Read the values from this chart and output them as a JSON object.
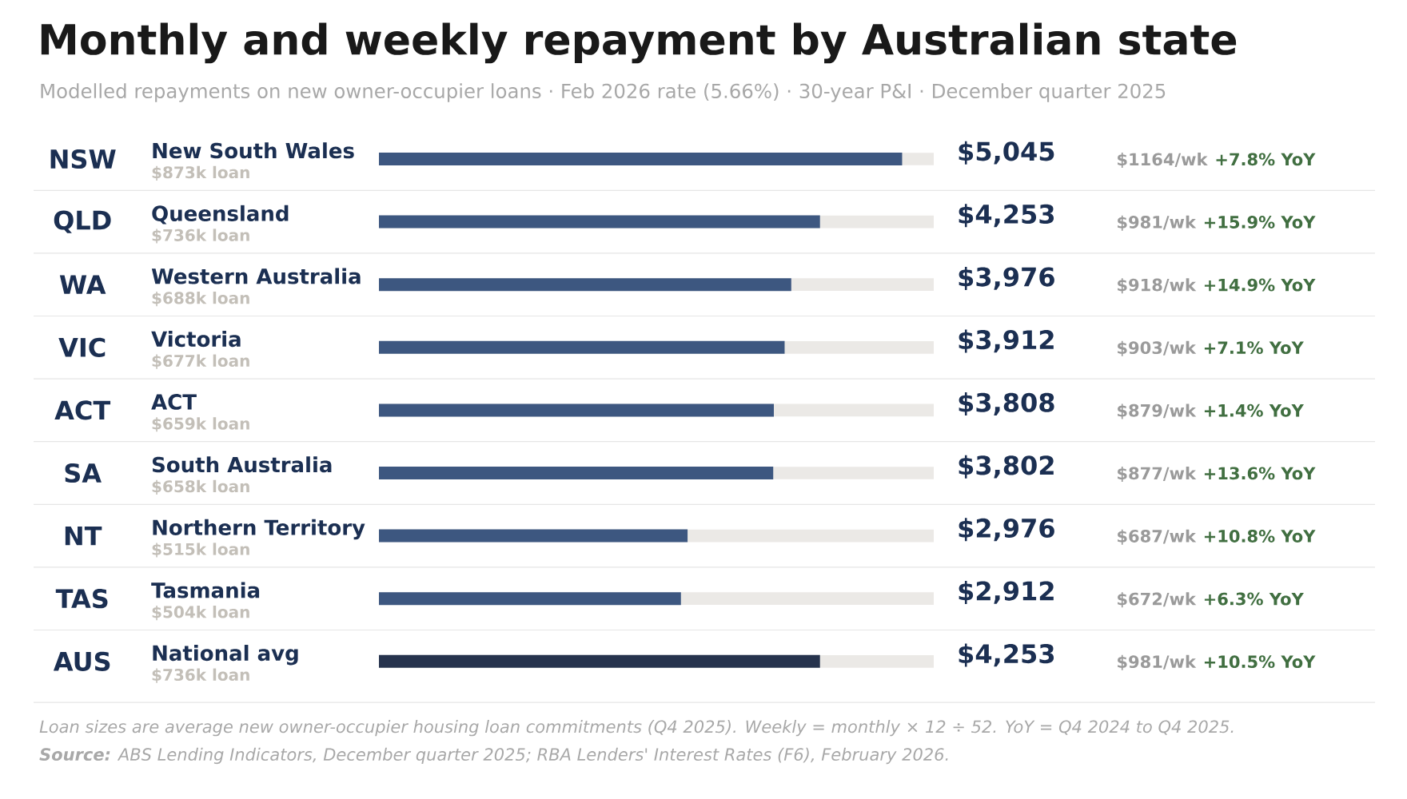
{
  "chart_data": {
    "type": "bar",
    "orientation": "horizontal",
    "title": "Monthly and weekly repayment by Australian state",
    "subtitle": "Modelled repayments on new owner-occupier loans · Feb 2026 rate (5.66%) · 30-year P&I · December quarter 2025",
    "categories": [
      "New South Wales",
      "Queensland",
      "Western Australia",
      "Victoria",
      "ACT",
      "South Australia",
      "Northern Territory",
      "Tasmania",
      "National avg"
    ],
    "values": [
      5045,
      4253,
      3976,
      3912,
      3808,
      3802,
      2976,
      2912,
      4253
    ],
    "value_labels": [
      "$5,045",
      "$4,253",
      "$3,976",
      "$3,912",
      "$3,808",
      "$3,802",
      "$2,976",
      "$2,912",
      "$4,253"
    ],
    "colors": [
      "#3d5780",
      "#3d5780",
      "#3d5780",
      "#3d5780",
      "#3d5780",
      "#3d5780",
      "#3d5780",
      "#3d5780",
      "#26334d"
    ],
    "xlim": [
      0,
      5350
    ],
    "annotations": [
      "NSW",
      "$873k loan",
      "$1164/wk",
      "+7.8% YoY",
      "QLD",
      "$736k loan",
      "$981/wk",
      "+15.9% YoY",
      "WA",
      "$688k loan",
      "$918/wk",
      "+14.9% YoY",
      "VIC",
      "$677k loan",
      "$903/wk",
      "+7.1% YoY",
      "ACT",
      "$659k loan",
      "$879/wk",
      "+1.4% YoY",
      "SA",
      "$658k loan",
      "$877/wk",
      "+13.6% YoY",
      "NT",
      "$515k loan",
      "$687/wk",
      "+10.8% YoY",
      "TAS",
      "$504k loan",
      "$672/wk",
      "+6.3% YoY",
      "AUS",
      "$736k loan",
      "$981/wk",
      "+10.5% YoY",
      "Loan sizes are average new owner-occupier housing loan commitments (Q4 2025). Weekly = monthly × 12 ÷ 52. YoY = Q4 2024 to Q4 2025.",
      "**Source:** ABS Lending Indicators, December quarter 2025; RBA Lenders' Interest Rates (F6), February 2026."
    ]
  }
}
